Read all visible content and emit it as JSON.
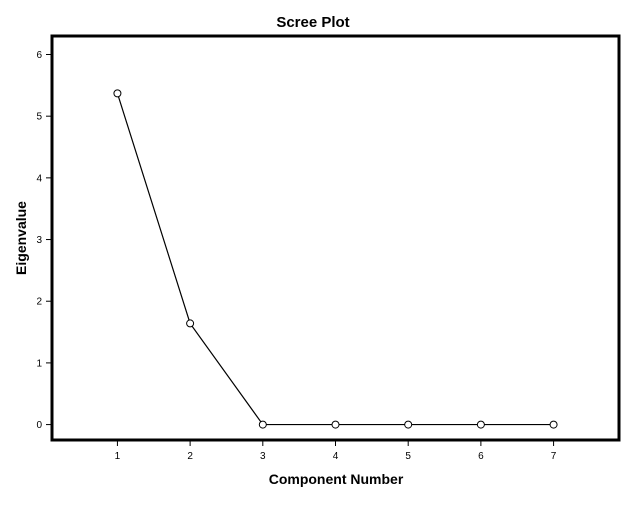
{
  "chart_data": {
    "type": "line",
    "title": "Scree Plot",
    "xlabel": "Component Number",
    "ylabel": "Eigenvalue",
    "x": [
      1,
      2,
      3,
      4,
      5,
      6,
      7
    ],
    "series": [
      {
        "values": [
          5.37,
          1.64,
          0.0,
          0.0,
          0.0,
          0.0,
          0.0
        ]
      }
    ],
    "xlim": [
      0.1,
      7.9
    ],
    "ylim": [
      -0.25,
      6.3
    ],
    "xticks": [
      1,
      2,
      3,
      4,
      5,
      6,
      7
    ],
    "yticks": [
      0,
      1,
      2,
      3,
      4,
      5,
      6
    ],
    "grid": false,
    "legend": "none",
    "marker": "open-circle",
    "line_color": "#000000"
  }
}
